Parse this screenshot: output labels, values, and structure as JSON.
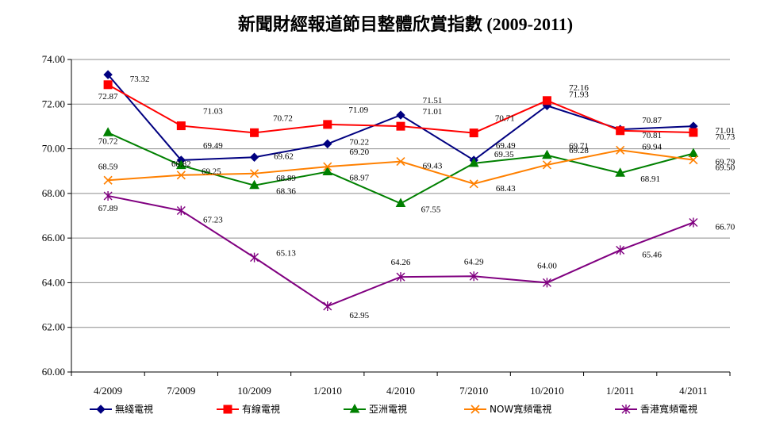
{
  "chart_data": {
    "type": "line",
    "title": "新聞財經報道節目整體欣賞指數 (2009-2011)",
    "xlabel": "",
    "ylabel": "",
    "categories": [
      "4/2009",
      "7/2009",
      "10/2009",
      "1/2010",
      "4/2010",
      "7/2010",
      "10/2010",
      "1/2011",
      "4/2011"
    ],
    "ylim": [
      60,
      74
    ],
    "yticks": [
      "60.00",
      "62.00",
      "64.00",
      "66.00",
      "68.00",
      "70.00",
      "72.00",
      "74.00"
    ],
    "grid": "horizontal",
    "legend_position": "bottom",
    "series": [
      {
        "name": "無綫電視",
        "color": "#000080",
        "marker": "diamond",
        "values": [
          73.32,
          69.49,
          69.62,
          70.22,
          71.51,
          69.49,
          71.93,
          70.87,
          71.01
        ]
      },
      {
        "name": "有線電視",
        "color": "#ff0000",
        "marker": "square",
        "values": [
          72.87,
          71.03,
          70.72,
          71.09,
          71.01,
          70.71,
          72.16,
          70.81,
          70.73
        ]
      },
      {
        "name": "亞洲電視",
        "color": "#008000",
        "marker": "triangle",
        "values": [
          70.72,
          69.25,
          68.36,
          68.97,
          67.55,
          69.35,
          69.71,
          68.91,
          69.79
        ]
      },
      {
        "name": "NOW寬頻電視",
        "color": "#ff8000",
        "marker": "x",
        "values": [
          68.59,
          68.82,
          68.89,
          69.2,
          69.43,
          68.43,
          69.28,
          69.94,
          69.5
        ]
      },
      {
        "name": "香港寬頻電視",
        "color": "#800080",
        "marker": "star",
        "values": [
          67.89,
          67.23,
          65.13,
          62.95,
          64.26,
          64.29,
          64.0,
          65.46,
          66.7
        ]
      }
    ]
  }
}
